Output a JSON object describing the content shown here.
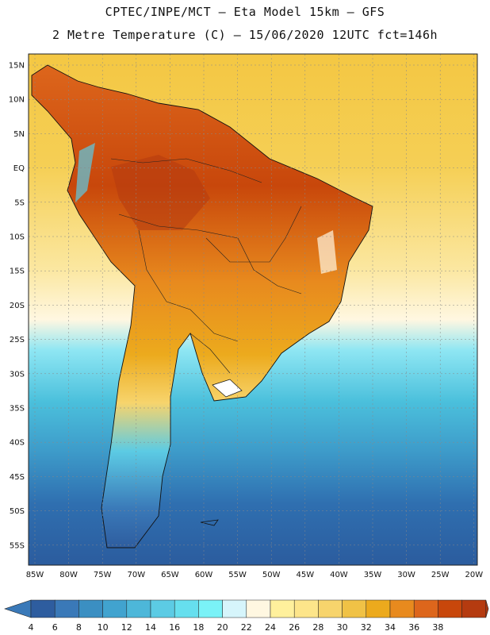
{
  "header": {
    "title_line1": "CPTEC/INPE/MCT –  Eta Model 15km – GFS",
    "title_line2": "2 Metre Temperature (C) – 15/06/2020 12UTC fct=146h"
  },
  "map": {
    "lat_labels": [
      "15N",
      "10N",
      "5N",
      "EQ",
      "5S",
      "10S",
      "15S",
      "20S",
      "25S",
      "30S",
      "35S",
      "40S",
      "45S",
      "50S",
      "55S"
    ],
    "lon_labels": [
      "85W",
      "80W",
      "75W",
      "70W",
      "65W",
      "60W",
      "55W",
      "50W",
      "45W",
      "40W",
      "35W",
      "30W",
      "25W",
      "20W"
    ]
  },
  "colorbar": {
    "ticks": [
      "4",
      "6",
      "8",
      "10",
      "12",
      "14",
      "16",
      "18",
      "20",
      "22",
      "24",
      "26",
      "28",
      "30",
      "32",
      "34",
      "36",
      "38"
    ],
    "colors": [
      "#2e5d9f",
      "#3a79b8",
      "#3b8fc2",
      "#41a3cf",
      "#4db7d9",
      "#5ccbe4",
      "#66dfee",
      "#7af2f7",
      "#d6f5fb",
      "#fff7e1",
      "#fff09c",
      "#fde58a",
      "#f7d46c",
      "#f0c246",
      "#ecaa1d",
      "#e88a1e",
      "#dd661c",
      "#c8470b",
      "#b53b10"
    ],
    "under_color": "#3a79b8",
    "over_color": "#b33a12"
  }
}
